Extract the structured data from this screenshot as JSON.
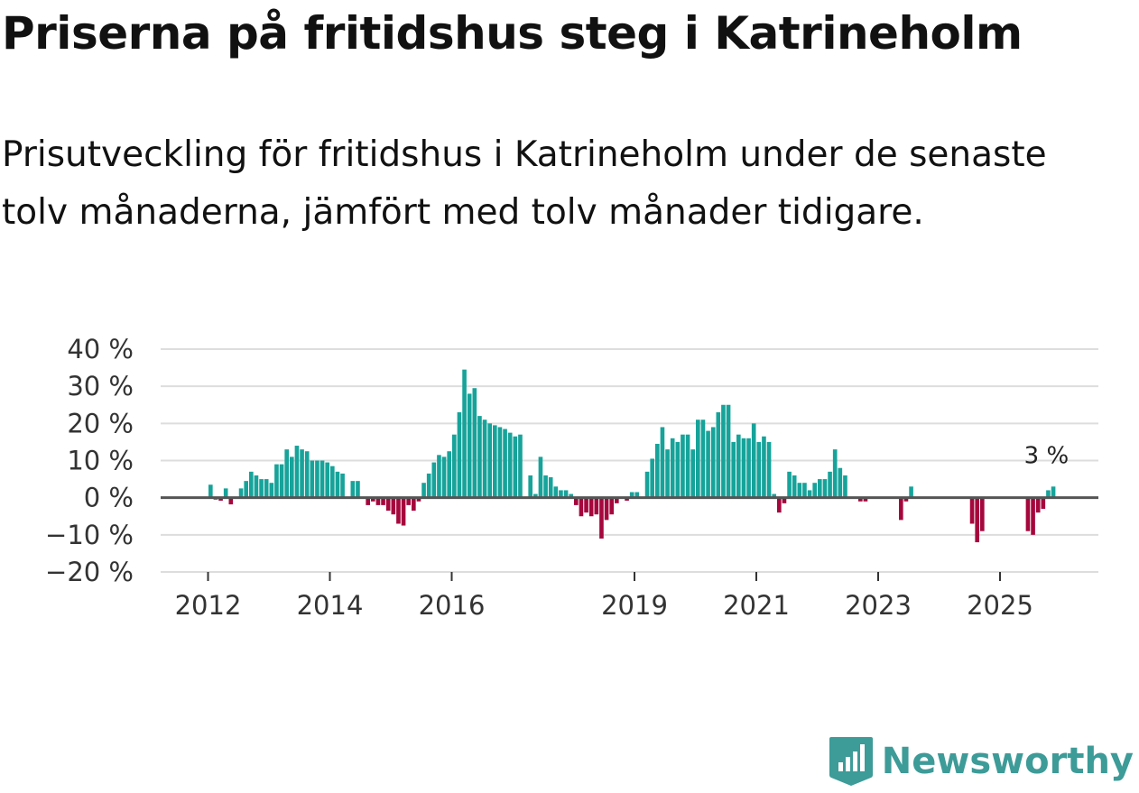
{
  "title": "Priserna på fritidshus steg i Katrineholm",
  "subtitle": "Prisutveckling för fritidshus i Katrineholm under de senaste tolv månaderna, jämfört med tolv månader tidigare.",
  "brand": {
    "name": "Newsworthy",
    "color": "#3d9b98"
  },
  "colors": {
    "positive": "#16a39a",
    "negative": "#a5073d",
    "grid": "#dddddd",
    "zero": "#555555"
  },
  "chart_data": {
    "type": "bar",
    "title": "Priserna på fritidshus steg i Katrineholm",
    "xlabel": "",
    "ylabel": "",
    "ylim": [
      -20,
      40
    ],
    "y_ticks": [
      40,
      30,
      20,
      10,
      0,
      -10,
      -20
    ],
    "y_tick_labels": [
      "40 %",
      "30 %",
      "20 %",
      "10 %",
      "0 %",
      "−10 %",
      "−20 %"
    ],
    "x_tick_years": [
      2012,
      2014,
      2016,
      2019,
      2021,
      2023,
      2025
    ],
    "x_tick_labels": [
      "2012",
      "2014",
      "2016",
      "2019",
      "2021",
      "2023",
      "2025"
    ],
    "series_start": "2011-01",
    "annotation": {
      "text": "3 %",
      "value": 3,
      "month": "2025-10"
    },
    "values": [
      0,
      0,
      0,
      0,
      0,
      0,
      0,
      0,
      0,
      0,
      0,
      0,
      3.5,
      -0.5,
      -0.8,
      2.5,
      -1.8,
      0,
      2.5,
      4.5,
      7,
      6,
      5,
      5,
      4,
      9,
      9,
      13,
      11,
      14,
      13,
      12.5,
      10,
      10,
      10,
      9.5,
      8.5,
      7,
      6.5,
      0,
      4.5,
      4.5,
      0,
      -2,
      -1,
      -2,
      -2,
      -3.5,
      -4.5,
      -7,
      -7.5,
      -2,
      -3.5,
      -1,
      4,
      6.5,
      9.5,
      11.5,
      11,
      12.5,
      17,
      23,
      34.5,
      28,
      29.5,
      22,
      21,
      20,
      19.5,
      19,
      18.5,
      17.5,
      16.5,
      17,
      0,
      6,
      1,
      11,
      6,
      5.5,
      3,
      2,
      2,
      1,
      -2,
      -5,
      -4,
      -5,
      -4.5,
      -11,
      -6,
      -4.5,
      -1.5,
      0,
      -0.8,
      1.5,
      1.5,
      0,
      7,
      10.5,
      14.5,
      19,
      13,
      16,
      15,
      17,
      17,
      13,
      21,
      21,
      18,
      19,
      23,
      25,
      25,
      15,
      17,
      16,
      16,
      20,
      15,
      16.5,
      15,
      1,
      -4,
      -1.5,
      7,
      6,
      4,
      4,
      2,
      4,
      5,
      5,
      7,
      13,
      8,
      6,
      0,
      0,
      -1,
      -1,
      0,
      0,
      0,
      0,
      0,
      0,
      -6,
      -1,
      3,
      0,
      0,
      0,
      0,
      0,
      0,
      0,
      0,
      0,
      0,
      0,
      -7,
      -12,
      -9,
      0,
      0,
      0,
      0,
      0,
      0,
      0,
      0,
      -9,
      -10,
      -4,
      -3,
      2,
      3
    ]
  }
}
